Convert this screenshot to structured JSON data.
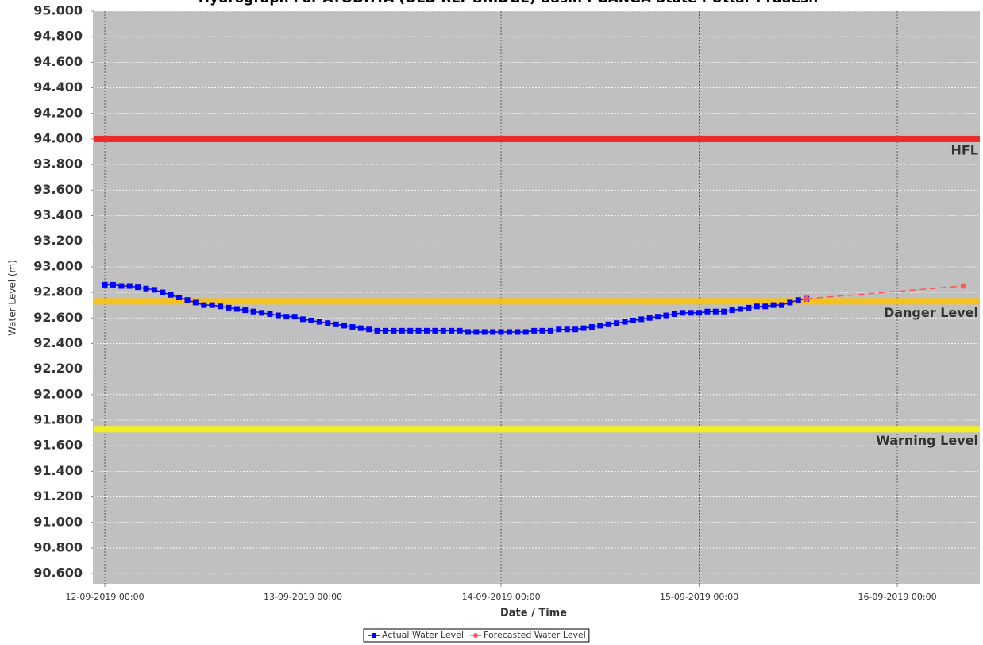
{
  "chart_data": {
    "type": "line",
    "title": "Hydrograph For AYODHYA (OLD RLY BRIDGE) Basin : GANGA State : Uttar Pradesh",
    "x_label": "Date / Time",
    "y_label": "Water Level (m)",
    "xlim": [
      "11-09-2019 22:39",
      "16-09-2019 10:00"
    ],
    "xticks": [
      "12-09-2019 00:00",
      "13-09-2019 00:00",
      "14-09-2019 00:00",
      "15-09-2019 00:00",
      "16-09-2019 00:00"
    ],
    "ylim": [
      90.52,
      95.0
    ],
    "yticks": [
      {
        "value": 90.6,
        "label": "90.600"
      },
      {
        "value": 90.8,
        "label": "90.800"
      },
      {
        "value": 91.0,
        "label": "91.000"
      },
      {
        "value": 91.2,
        "label": "91.200"
      },
      {
        "value": 91.4,
        "label": "91.400"
      },
      {
        "value": 91.6,
        "label": "91.600"
      },
      {
        "value": 91.8,
        "label": "91.800"
      },
      {
        "value": 92.0,
        "label": "92.000"
      },
      {
        "value": 92.2,
        "label": "92.200"
      },
      {
        "value": 92.4,
        "label": "92.400"
      },
      {
        "value": 92.6,
        "label": "92.600"
      },
      {
        "value": 92.8,
        "label": "92.800"
      },
      {
        "value": 93.0,
        "label": "93.000"
      },
      {
        "value": 93.2,
        "label": "93.200"
      },
      {
        "value": 93.4,
        "label": "93.400"
      },
      {
        "value": 93.6,
        "label": "93.600"
      },
      {
        "value": 93.8,
        "label": "93.800"
      },
      {
        "value": 94.0,
        "label": "94.000"
      },
      {
        "value": 94.2,
        "label": "94.200"
      },
      {
        "value": 94.4,
        "label": "94.400"
      },
      {
        "value": 94.6,
        "label": "94.600"
      },
      {
        "value": 94.8,
        "label": "94.800"
      },
      {
        "value": 95.0,
        "label": "95.000"
      }
    ],
    "grid": true,
    "reference_lines": [
      {
        "label": "HFL",
        "value": 94.0,
        "color": "#ee2a2a"
      },
      {
        "label": "Danger Level",
        "value": 92.73,
        "color": "#f5c21b"
      },
      {
        "label": "Warning Level",
        "value": 91.73,
        "color": "#f0f020"
      }
    ],
    "series": [
      {
        "name": "Actual Water Level",
        "color": "#0000ff",
        "marker": "square",
        "dashed": false,
        "x": [
          "12-09-2019 00:00",
          "12-09-2019 01:00",
          "12-09-2019 02:00",
          "12-09-2019 03:00",
          "12-09-2019 04:00",
          "12-09-2019 05:00",
          "12-09-2019 06:00",
          "12-09-2019 07:00",
          "12-09-2019 08:00",
          "12-09-2019 09:00",
          "12-09-2019 10:00",
          "12-09-2019 11:00",
          "12-09-2019 12:00",
          "12-09-2019 13:00",
          "12-09-2019 14:00",
          "12-09-2019 15:00",
          "12-09-2019 16:00",
          "12-09-2019 17:00",
          "12-09-2019 18:00",
          "12-09-2019 19:00",
          "12-09-2019 20:00",
          "12-09-2019 21:00",
          "12-09-2019 22:00",
          "12-09-2019 23:00",
          "13-09-2019 00:00",
          "13-09-2019 01:00",
          "13-09-2019 02:00",
          "13-09-2019 03:00",
          "13-09-2019 04:00",
          "13-09-2019 05:00",
          "13-09-2019 06:00",
          "13-09-2019 07:00",
          "13-09-2019 08:00",
          "13-09-2019 09:00",
          "13-09-2019 10:00",
          "13-09-2019 11:00",
          "13-09-2019 12:00",
          "13-09-2019 13:00",
          "13-09-2019 14:00",
          "13-09-2019 15:00",
          "13-09-2019 16:00",
          "13-09-2019 17:00",
          "13-09-2019 18:00",
          "13-09-2019 19:00",
          "13-09-2019 20:00",
          "13-09-2019 21:00",
          "13-09-2019 22:00",
          "13-09-2019 23:00",
          "14-09-2019 00:00",
          "14-09-2019 01:00",
          "14-09-2019 02:00",
          "14-09-2019 03:00",
          "14-09-2019 04:00",
          "14-09-2019 05:00",
          "14-09-2019 06:00",
          "14-09-2019 07:00",
          "14-09-2019 08:00",
          "14-09-2019 09:00",
          "14-09-2019 10:00",
          "14-09-2019 11:00",
          "14-09-2019 12:00",
          "14-09-2019 13:00",
          "14-09-2019 14:00",
          "14-09-2019 15:00",
          "14-09-2019 16:00",
          "14-09-2019 17:00",
          "14-09-2019 18:00",
          "14-09-2019 19:00",
          "14-09-2019 20:00",
          "14-09-2019 21:00",
          "14-09-2019 22:00",
          "14-09-2019 23:00",
          "15-09-2019 00:00",
          "15-09-2019 01:00",
          "15-09-2019 02:00",
          "15-09-2019 03:00",
          "15-09-2019 04:00",
          "15-09-2019 05:00",
          "15-09-2019 06:00",
          "15-09-2019 07:00",
          "15-09-2019 08:00",
          "15-09-2019 09:00",
          "15-09-2019 10:00",
          "15-09-2019 11:00",
          "15-09-2019 12:00",
          "15-09-2019 13:00"
        ],
        "values": [
          92.86,
          92.86,
          92.85,
          92.85,
          92.84,
          92.83,
          92.82,
          92.8,
          92.78,
          92.76,
          92.74,
          92.72,
          92.7,
          92.7,
          92.69,
          92.68,
          92.67,
          92.66,
          92.65,
          92.64,
          92.63,
          92.62,
          92.61,
          92.61,
          92.59,
          92.58,
          92.57,
          92.56,
          92.55,
          92.54,
          92.53,
          92.52,
          92.51,
          92.5,
          92.5,
          92.5,
          92.5,
          92.5,
          92.5,
          92.5,
          92.5,
          92.5,
          92.5,
          92.5,
          92.49,
          92.49,
          92.49,
          92.49,
          92.49,
          92.49,
          92.49,
          92.49,
          92.5,
          92.5,
          92.5,
          92.51,
          92.51,
          92.51,
          92.52,
          92.53,
          92.54,
          92.55,
          92.56,
          92.57,
          92.58,
          92.59,
          92.6,
          92.61,
          92.62,
          92.63,
          92.64,
          92.64,
          92.64,
          92.65,
          92.65,
          92.65,
          92.66,
          92.67,
          92.68,
          92.69,
          92.69,
          92.7,
          92.7,
          92.72,
          92.74,
          92.75
        ]
      },
      {
        "name": "Forecasted Water Level",
        "color": "#ff5555",
        "marker": "circle",
        "dashed": true,
        "x": [
          "15-09-2019 13:00",
          "16-09-2019 08:00"
        ],
        "values": [
          92.75,
          92.85
        ]
      }
    ]
  }
}
